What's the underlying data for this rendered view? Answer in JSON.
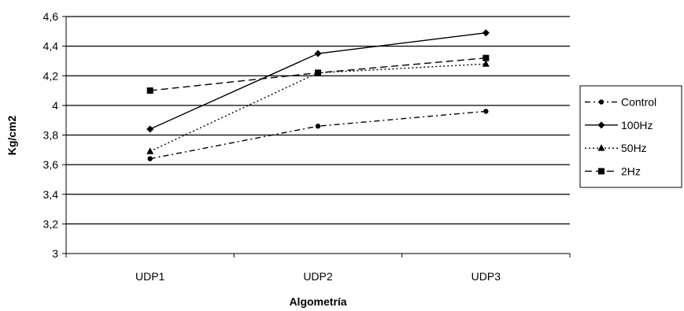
{
  "chart_data": {
    "type": "line",
    "categories": [
      "UDP1",
      "UDP2",
      "UDP3"
    ],
    "xlabel": "Algometría",
    "ylabel": "Kg/cm2",
    "ylim": [
      3,
      4.6
    ],
    "yticks": [
      "3",
      "3,2",
      "3,4",
      "3,6",
      "3,8",
      "4",
      "4,2",
      "4,4",
      "4,6"
    ],
    "grid": "horizontal",
    "legend_position": "right",
    "series": [
      {
        "name": "Control",
        "values": [
          3.64,
          3.86,
          3.96
        ],
        "line": "dash-dot",
        "marker": "circle"
      },
      {
        "name": "100Hz",
        "values": [
          3.84,
          4.35,
          4.49
        ],
        "line": "solid",
        "marker": "diamond"
      },
      {
        "name": "50Hz",
        "values": [
          3.69,
          4.22,
          4.28
        ],
        "line": "dotted",
        "marker": "triangle"
      },
      {
        "name": "2Hz",
        "values": [
          4.1,
          4.22,
          4.32
        ],
        "line": "dashed",
        "marker": "square"
      }
    ]
  }
}
